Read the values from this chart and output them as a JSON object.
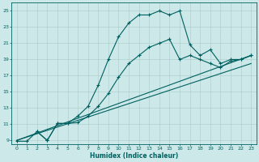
{
  "title": "",
  "xlabel": "Humidex (Indice chaleur)",
  "bg_color": "#cce8e8",
  "grid_color": "#b0d0d0",
  "line_color": "#006060",
  "xlim": [
    -0.5,
    23.5
  ],
  "ylim": [
    8.5,
    26.0
  ],
  "xticks": [
    0,
    1,
    2,
    3,
    4,
    5,
    6,
    7,
    8,
    9,
    10,
    11,
    12,
    13,
    14,
    15,
    16,
    17,
    18,
    19,
    20,
    21,
    22,
    23
  ],
  "yticks": [
    9,
    11,
    13,
    15,
    17,
    19,
    21,
    23,
    25
  ],
  "series1_x": [
    0,
    1,
    2,
    3,
    4,
    5,
    6,
    7,
    8,
    9,
    10,
    11,
    12,
    13,
    14,
    15,
    16,
    17,
    18,
    19,
    20,
    21,
    22,
    23
  ],
  "series1_y": [
    8.9,
    8.9,
    10.1,
    9.0,
    11.1,
    11.1,
    12.0,
    13.2,
    15.8,
    19.0,
    21.8,
    23.5,
    24.5,
    24.5,
    25.0,
    24.5,
    25.0,
    20.8,
    19.5,
    20.2,
    18.5,
    19.0,
    19.0,
    19.5
  ],
  "series2_x": [
    2,
    3,
    4,
    5,
    6,
    7,
    8,
    9,
    10,
    11,
    12,
    13,
    14,
    15,
    16,
    17,
    18,
    19,
    20,
    21,
    22,
    23
  ],
  "series2_y": [
    10.1,
    9.0,
    11.1,
    11.1,
    11.2,
    12.0,
    13.2,
    14.8,
    16.8,
    18.5,
    19.5,
    20.5,
    21.0,
    21.5,
    19.0,
    19.5,
    19.0,
    18.5,
    18.0,
    18.8,
    19.0,
    19.5
  ],
  "series3_x": [
    0,
    23
  ],
  "series3_y": [
    9.0,
    19.5
  ],
  "series4_x": [
    0,
    23
  ],
  "series4_y": [
    9.0,
    18.5
  ]
}
